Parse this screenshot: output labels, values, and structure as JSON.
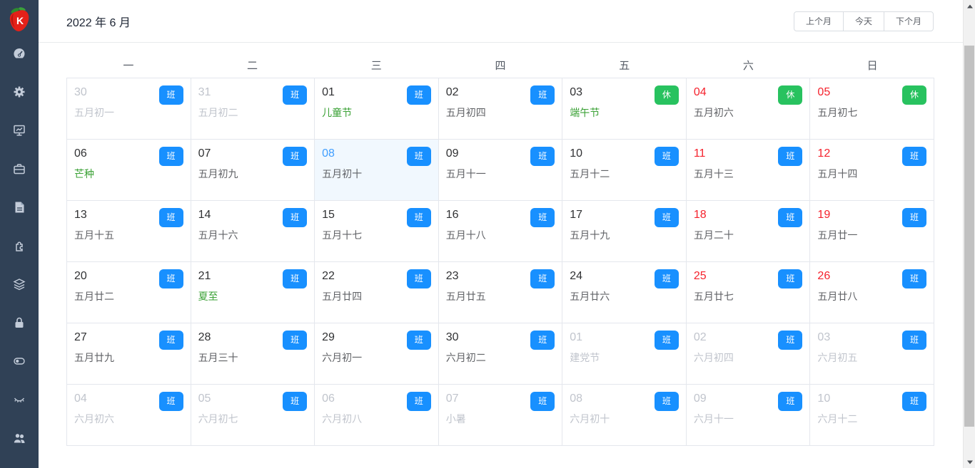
{
  "header": {
    "title": "2022 年 6 月",
    "prev_button": "上个月",
    "today_button": "今天",
    "next_button": "下个月"
  },
  "sidebar": {
    "logo_letter": "K",
    "icons": [
      "dashboard-icon",
      "settings-gear-icon",
      "monitor-chart-icon",
      "briefcase-icon",
      "document-icon",
      "puzzle-icon",
      "layers-icon",
      "lock-icon",
      "toggle-switch-icon",
      "eye-closed-icon",
      "users-icon"
    ]
  },
  "calendar": {
    "weekdays": [
      "一",
      "二",
      "三",
      "四",
      "五",
      "六",
      "日"
    ],
    "cells": [
      {
        "day": "30",
        "sub": "五月初一",
        "badge": "班",
        "type": "work",
        "month": "prev",
        "red": false,
        "green": false,
        "today": false
      },
      {
        "day": "31",
        "sub": "五月初二",
        "badge": "班",
        "type": "work",
        "month": "prev",
        "red": false,
        "green": false,
        "today": false
      },
      {
        "day": "01",
        "sub": "儿童节",
        "badge": "班",
        "type": "work",
        "month": "cur",
        "red": false,
        "green": true,
        "today": false
      },
      {
        "day": "02",
        "sub": "五月初四",
        "badge": "班",
        "type": "work",
        "month": "cur",
        "red": false,
        "green": false,
        "today": false
      },
      {
        "day": "03",
        "sub": "端午节",
        "badge": "休",
        "type": "rest",
        "month": "cur",
        "red": false,
        "green": true,
        "today": false
      },
      {
        "day": "04",
        "sub": "五月初六",
        "badge": "休",
        "type": "rest",
        "month": "cur",
        "red": true,
        "green": false,
        "today": false
      },
      {
        "day": "05",
        "sub": "五月初七",
        "badge": "休",
        "type": "rest",
        "month": "cur",
        "red": true,
        "green": false,
        "today": false
      },
      {
        "day": "06",
        "sub": "芒种",
        "badge": "班",
        "type": "work",
        "month": "cur",
        "red": false,
        "green": true,
        "today": false
      },
      {
        "day": "07",
        "sub": "五月初九",
        "badge": "班",
        "type": "work",
        "month": "cur",
        "red": false,
        "green": false,
        "today": false
      },
      {
        "day": "08",
        "sub": "五月初十",
        "badge": "班",
        "type": "work",
        "month": "cur",
        "red": false,
        "green": false,
        "today": true
      },
      {
        "day": "09",
        "sub": "五月十一",
        "badge": "班",
        "type": "work",
        "month": "cur",
        "red": false,
        "green": false,
        "today": false
      },
      {
        "day": "10",
        "sub": "五月十二",
        "badge": "班",
        "type": "work",
        "month": "cur",
        "red": false,
        "green": false,
        "today": false
      },
      {
        "day": "11",
        "sub": "五月十三",
        "badge": "班",
        "type": "work",
        "month": "cur",
        "red": true,
        "green": false,
        "today": false
      },
      {
        "day": "12",
        "sub": "五月十四",
        "badge": "班",
        "type": "work",
        "month": "cur",
        "red": true,
        "green": false,
        "today": false
      },
      {
        "day": "13",
        "sub": "五月十五",
        "badge": "班",
        "type": "work",
        "month": "cur",
        "red": false,
        "green": false,
        "today": false
      },
      {
        "day": "14",
        "sub": "五月十六",
        "badge": "班",
        "type": "work",
        "month": "cur",
        "red": false,
        "green": false,
        "today": false
      },
      {
        "day": "15",
        "sub": "五月十七",
        "badge": "班",
        "type": "work",
        "month": "cur",
        "red": false,
        "green": false,
        "today": false
      },
      {
        "day": "16",
        "sub": "五月十八",
        "badge": "班",
        "type": "work",
        "month": "cur",
        "red": false,
        "green": false,
        "today": false
      },
      {
        "day": "17",
        "sub": "五月十九",
        "badge": "班",
        "type": "work",
        "month": "cur",
        "red": false,
        "green": false,
        "today": false
      },
      {
        "day": "18",
        "sub": "五月二十",
        "badge": "班",
        "type": "work",
        "month": "cur",
        "red": true,
        "green": false,
        "today": false
      },
      {
        "day": "19",
        "sub": "五月廿一",
        "badge": "班",
        "type": "work",
        "month": "cur",
        "red": true,
        "green": false,
        "today": false
      },
      {
        "day": "20",
        "sub": "五月廿二",
        "badge": "班",
        "type": "work",
        "month": "cur",
        "red": false,
        "green": false,
        "today": false
      },
      {
        "day": "21",
        "sub": "夏至",
        "badge": "班",
        "type": "work",
        "month": "cur",
        "red": false,
        "green": true,
        "today": false
      },
      {
        "day": "22",
        "sub": "五月廿四",
        "badge": "班",
        "type": "work",
        "month": "cur",
        "red": false,
        "green": false,
        "today": false
      },
      {
        "day": "23",
        "sub": "五月廿五",
        "badge": "班",
        "type": "work",
        "month": "cur",
        "red": false,
        "green": false,
        "today": false
      },
      {
        "day": "24",
        "sub": "五月廿六",
        "badge": "班",
        "type": "work",
        "month": "cur",
        "red": false,
        "green": false,
        "today": false
      },
      {
        "day": "25",
        "sub": "五月廿七",
        "badge": "班",
        "type": "work",
        "month": "cur",
        "red": true,
        "green": false,
        "today": false
      },
      {
        "day": "26",
        "sub": "五月廿八",
        "badge": "班",
        "type": "work",
        "month": "cur",
        "red": true,
        "green": false,
        "today": false
      },
      {
        "day": "27",
        "sub": "五月廿九",
        "badge": "班",
        "type": "work",
        "month": "cur",
        "red": false,
        "green": false,
        "today": false
      },
      {
        "day": "28",
        "sub": "五月三十",
        "badge": "班",
        "type": "work",
        "month": "cur",
        "red": false,
        "green": false,
        "today": false
      },
      {
        "day": "29",
        "sub": "六月初一",
        "badge": "班",
        "type": "work",
        "month": "cur",
        "red": false,
        "green": false,
        "today": false
      },
      {
        "day": "30",
        "sub": "六月初二",
        "badge": "班",
        "type": "work",
        "month": "cur",
        "red": false,
        "green": false,
        "today": false
      },
      {
        "day": "01",
        "sub": "建党节",
        "badge": "班",
        "type": "work",
        "month": "next",
        "red": false,
        "green": false,
        "today": false
      },
      {
        "day": "02",
        "sub": "六月初四",
        "badge": "班",
        "type": "work",
        "month": "next",
        "red": false,
        "green": false,
        "today": false
      },
      {
        "day": "03",
        "sub": "六月初五",
        "badge": "班",
        "type": "work",
        "month": "next",
        "red": false,
        "green": false,
        "today": false
      },
      {
        "day": "04",
        "sub": "六月初六",
        "badge": "班",
        "type": "work",
        "month": "next",
        "red": false,
        "green": false,
        "today": false
      },
      {
        "day": "05",
        "sub": "六月初七",
        "badge": "班",
        "type": "work",
        "month": "next",
        "red": false,
        "green": false,
        "today": false
      },
      {
        "day": "06",
        "sub": "六月初八",
        "badge": "班",
        "type": "work",
        "month": "next",
        "red": false,
        "green": false,
        "today": false
      },
      {
        "day": "07",
        "sub": "小暑",
        "badge": "班",
        "type": "work",
        "month": "next",
        "red": false,
        "green": false,
        "today": false
      },
      {
        "day": "08",
        "sub": "六月初十",
        "badge": "班",
        "type": "work",
        "month": "next",
        "red": false,
        "green": false,
        "today": false
      },
      {
        "day": "09",
        "sub": "六月十一",
        "badge": "班",
        "type": "work",
        "month": "next",
        "red": false,
        "green": false,
        "today": false
      },
      {
        "day": "10",
        "sub": "六月十二",
        "badge": "班",
        "type": "work",
        "month": "next",
        "red": false,
        "green": false,
        "today": false
      }
    ]
  },
  "colors": {
    "sidebar_bg": "#304156",
    "badge_work_bg": "#1890ff",
    "badge_rest_bg": "#28c25f",
    "weekend_red": "#f5222d",
    "today_blue": "#409eff",
    "today_cell_bg": "#f1f8fe",
    "festival_green": "#3aa135",
    "other_month_gray": "#c0c4cc"
  }
}
